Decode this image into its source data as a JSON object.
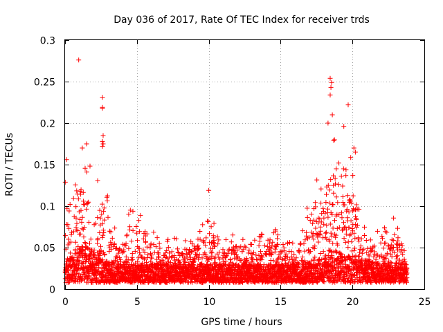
{
  "chart_data": {
    "type": "scatter",
    "title": "Day 036 of 2017, Rate Of TEC Index for receiver trds",
    "xlabel": "GPS time / hours",
    "ylabel": "ROTI / TECUs",
    "xlim": [
      0,
      25
    ],
    "ylim": [
      0,
      0.3
    ],
    "xticks": [
      0,
      5,
      10,
      15,
      20,
      25
    ],
    "xtick_labels": [
      "0",
      "5",
      "10",
      "15",
      "20",
      "25"
    ],
    "yticks": [
      0,
      0.05,
      0.1,
      0.15,
      0.2,
      0.25,
      0.3
    ],
    "ytick_labels": [
      "0",
      "0.05",
      "0.1",
      "0.15",
      "0.2",
      "0.25",
      "0.3"
    ],
    "grid": true,
    "marker": "+",
    "series": [
      {
        "name": "ROTI",
        "color": "#ff0000",
        "data_range_x": [
          0,
          23.8
        ],
        "envelope": [
          {
            "x": 0.0,
            "base": 0.022,
            "peak": 0.125
          },
          {
            "x": 0.5,
            "base": 0.03,
            "peak": 0.1
          },
          {
            "x": 1.0,
            "base": 0.04,
            "peak": 0.15
          },
          {
            "x": 1.5,
            "base": 0.05,
            "peak": 0.16
          },
          {
            "x": 2.0,
            "base": 0.035,
            "peak": 0.12
          },
          {
            "x": 2.5,
            "base": 0.03,
            "peak": 0.13
          },
          {
            "x": 3.0,
            "base": 0.025,
            "peak": 0.1
          },
          {
            "x": 3.5,
            "base": 0.022,
            "peak": 0.06
          },
          {
            "x": 4.0,
            "base": 0.02,
            "peak": 0.05
          },
          {
            "x": 4.5,
            "base": 0.02,
            "peak": 0.1
          },
          {
            "x": 5.0,
            "base": 0.02,
            "peak": 0.09
          },
          {
            "x": 6.0,
            "base": 0.02,
            "peak": 0.06
          },
          {
            "x": 7.0,
            "base": 0.02,
            "peak": 0.055
          },
          {
            "x": 8.0,
            "base": 0.02,
            "peak": 0.05
          },
          {
            "x": 9.0,
            "base": 0.02,
            "peak": 0.055
          },
          {
            "x": 10.0,
            "base": 0.02,
            "peak": 0.08
          },
          {
            "x": 11.0,
            "base": 0.02,
            "peak": 0.05
          },
          {
            "x": 12.0,
            "base": 0.02,
            "peak": 0.06
          },
          {
            "x": 13.0,
            "base": 0.02,
            "peak": 0.05
          },
          {
            "x": 14.0,
            "base": 0.02,
            "peak": 0.07
          },
          {
            "x": 15.0,
            "base": 0.02,
            "peak": 0.06
          },
          {
            "x": 16.0,
            "base": 0.02,
            "peak": 0.05
          },
          {
            "x": 17.0,
            "base": 0.025,
            "peak": 0.1
          },
          {
            "x": 17.5,
            "base": 0.025,
            "peak": 0.13
          },
          {
            "x": 18.0,
            "base": 0.03,
            "peak": 0.15
          },
          {
            "x": 18.5,
            "base": 0.04,
            "peak": 0.19
          },
          {
            "x": 19.0,
            "base": 0.035,
            "peak": 0.16
          },
          {
            "x": 19.5,
            "base": 0.03,
            "peak": 0.14
          },
          {
            "x": 20.0,
            "base": 0.03,
            "peak": 0.17
          },
          {
            "x": 20.5,
            "base": 0.025,
            "peak": 0.08
          },
          {
            "x": 21.0,
            "base": 0.025,
            "peak": 0.06
          },
          {
            "x": 22.0,
            "base": 0.022,
            "peak": 0.06
          },
          {
            "x": 23.0,
            "base": 0.022,
            "peak": 0.08
          },
          {
            "x": 23.8,
            "base": 0.02,
            "peak": 0.05
          }
        ],
        "outliers": [
          {
            "x": 0.95,
            "y": 0.276
          },
          {
            "x": 2.6,
            "y": 0.231
          },
          {
            "x": 2.6,
            "y": 0.219
          },
          {
            "x": 2.6,
            "y": 0.218
          },
          {
            "x": 2.65,
            "y": 0.185
          },
          {
            "x": 2.6,
            "y": 0.178
          },
          {
            "x": 2.65,
            "y": 0.175
          },
          {
            "x": 2.6,
            "y": 0.172
          },
          {
            "x": 0.1,
            "y": 0.156
          },
          {
            "x": 1.2,
            "y": 0.17
          },
          {
            "x": 1.5,
            "y": 0.175
          },
          {
            "x": 10.0,
            "y": 0.119
          },
          {
            "x": 18.45,
            "y": 0.254
          },
          {
            "x": 18.55,
            "y": 0.249
          },
          {
            "x": 18.5,
            "y": 0.243
          },
          {
            "x": 18.45,
            "y": 0.234
          },
          {
            "x": 19.7,
            "y": 0.222
          },
          {
            "x": 18.6,
            "y": 0.21
          },
          {
            "x": 18.3,
            "y": 0.2
          },
          {
            "x": 19.4,
            "y": 0.196
          },
          {
            "x": 20.1,
            "y": 0.17
          },
          {
            "x": 20.2,
            "y": 0.165
          }
        ]
      }
    ]
  }
}
